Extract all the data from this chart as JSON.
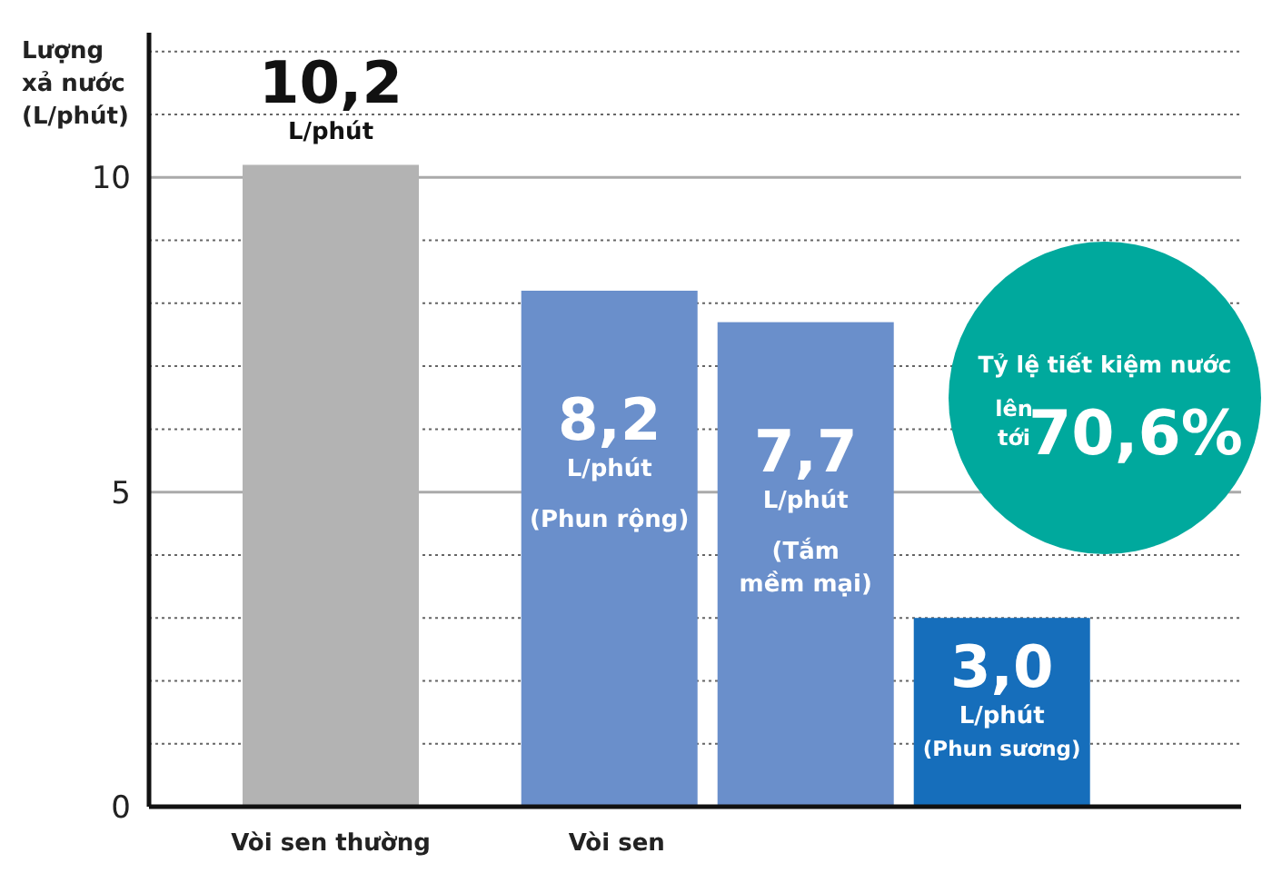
{
  "chart_data": {
    "type": "bar",
    "ylabel": "Lượng xả nước (L/phút)",
    "categories": [
      "Vòi sen thường",
      null,
      null,
      null
    ],
    "values": [
      10.2,
      8.2,
      7.7,
      3.0
    ],
    "colors": [
      "#b3b3b3",
      "#6a8fcb",
      "#6a8fcb",
      "#166ebb"
    ],
    "value_labels": [
      "10,2",
      "8,2",
      "7,7",
      "3,0"
    ],
    "ylim": [
      0,
      12.3
    ],
    "yticks": [
      0,
      {
        "value": 1,
        "label": null
      },
      {
        "value": 2,
        "label": null
      },
      {
        "value": 3,
        "label": null
      },
      {
        "value": 4,
        "label": null
      },
      5,
      {
        "value": 6,
        "label": null
      },
      {
        "value": 7,
        "label": null
      },
      {
        "value": 8,
        "label": null
      },
      {
        "value": 9,
        "label": null
      },
      10,
      {
        "value": 11,
        "label": null
      },
      {
        "value": 12,
        "label": null
      }
    ],
    "grid": "y",
    "annotations": [
      "L/phút",
      "L/phút",
      "L/phút",
      "L/phút",
      "(Phun rộng)",
      "(Tắm mềm mại)",
      "(Phun sương)",
      "Vòi sen",
      "Tỷ lệ tiết kiệm nước",
      "lên tới",
      "70,6%"
    ]
  }
}
